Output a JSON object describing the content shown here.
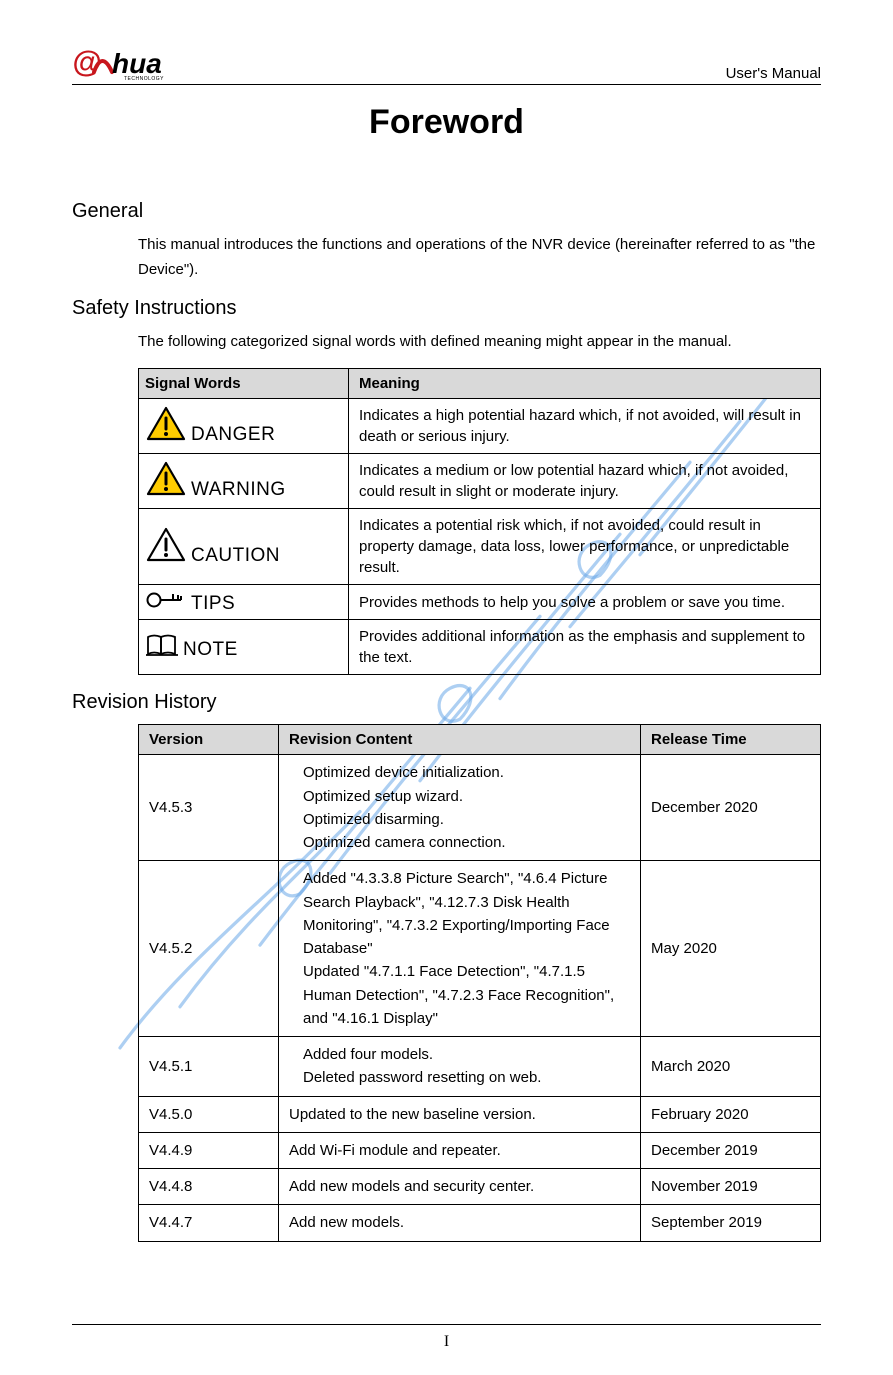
{
  "header": {
    "doc_type": "User's Manual",
    "logo_colors": {
      "at": "#c8161d",
      "hua": "#000000",
      "sub": "#000000"
    },
    "logo_text_hua": "hua",
    "logo_subtext": "TECHNOLOGY"
  },
  "title": "Foreword",
  "page_number": "I",
  "watermark": {
    "color": "#6aa8e8",
    "opacity": 0.55,
    "stroke_width": 3.2
  },
  "sections": {
    "general": {
      "heading": "General",
      "text": "This manual introduces the functions and operations of the NVR device (hereinafter referred to as \"the Device\")."
    },
    "safety": {
      "heading": "Safety Instructions",
      "intro": "The following categorized signal words with defined meaning might appear in the manual.",
      "table": {
        "headers": {
          "signal": "Signal Words",
          "meaning": "Meaning"
        },
        "rows": [
          {
            "icon": "triangle",
            "label": "DANGER",
            "meaning": "Indicates a high potential hazard which, if not avoided, will result in death or serious injury."
          },
          {
            "icon": "triangle",
            "label": "WARNING",
            "meaning": "Indicates a medium or low potential hazard which, if not avoided, could result in slight or moderate injury."
          },
          {
            "icon": "triangle-outline",
            "label": "CAUTION",
            "meaning": "Indicates a potential risk which, if not avoided, could result in property damage, data loss, lower performance, or unpredictable result."
          },
          {
            "icon": "key",
            "label": "TIPS",
            "meaning": "Provides methods to help you solve a problem or save you time."
          },
          {
            "icon": "book",
            "label": "NOTE",
            "meaning": "Provides additional information as the emphasis and supplement to the text."
          }
        ]
      }
    },
    "revision": {
      "heading": "Revision History",
      "table": {
        "headers": {
          "version": "Version",
          "content": "Revision Content",
          "release": "Release Time"
        },
        "rows": [
          {
            "version": "V4.5.3",
            "content": "Optimized device initialization.\nOptimized setup wizard.\nOptimized disarming.\nOptimized camera connection.",
            "release": "December 2020",
            "indent": true
          },
          {
            "version": "V4.5.2",
            "content": "Added \"4.3.3.8 Picture Search\", \"4.6.4 Picture Search Playback\", \"4.12.7.3 Disk Health Monitoring\", \"4.7.3.2 Exporting/Importing Face Database\"\nUpdated \"4.7.1.1 Face Detection\", \"4.7.1.5 Human Detection\", \"4.7.2.3 Face Recognition\", and \"4.16.1 Display\"",
            "release": "May 2020",
            "indent": true
          },
          {
            "version": "V4.5.1",
            "content": "Added four models.\nDeleted password resetting on web.",
            "release": "March 2020",
            "indent": true
          },
          {
            "version": "V4.5.0",
            "content": "Updated to the new baseline version.",
            "release": "February 2020",
            "indent": false
          },
          {
            "version": "V4.4.9",
            "content": "Add Wi-Fi module and repeater.",
            "release": "December 2019",
            "indent": false
          },
          {
            "version": "V4.4.8",
            "content": "Add new models and security center.",
            "release": "November 2019",
            "indent": false
          },
          {
            "version": "V4.4.7",
            "content": "Add new models.",
            "release": "September 2019",
            "indent": false
          }
        ]
      }
    }
  },
  "colors": {
    "table_header_bg": "#d9d9d9",
    "border": "#000000",
    "text": "#000000",
    "triangle_fill": "#ffcc00",
    "triangle_stroke": "#000000"
  }
}
